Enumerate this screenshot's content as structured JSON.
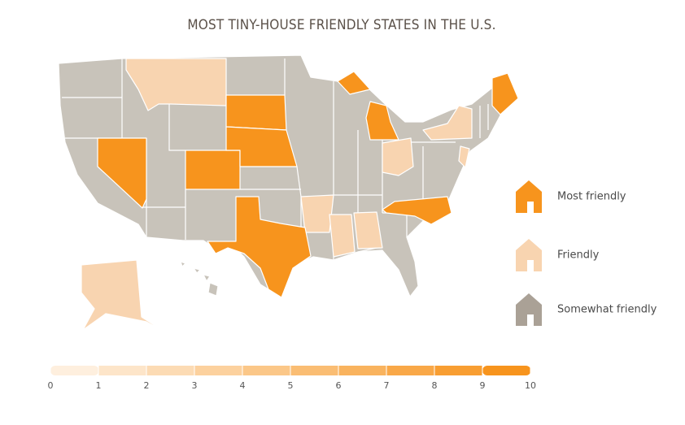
{
  "title": "MOST TINY-HOUSE FRIENDLY STATES IN THE U.S.",
  "legend": [
    {
      "label": "Most friendly",
      "color": "#f7941d"
    },
    {
      "label": "Friendly",
      "color": "#f8d4b0"
    },
    {
      "label": "Somewhat friendly",
      "color": "#aaa196"
    }
  ],
  "map_colors": {
    "most": "#f7941d",
    "friendly": "#f8d4b0",
    "somewhat": "#c8c3ba"
  },
  "scale": {
    "color": "#f7941d",
    "ticks": [
      0,
      1,
      2,
      3,
      4,
      5,
      6,
      7,
      8,
      9,
      10
    ]
  }
}
